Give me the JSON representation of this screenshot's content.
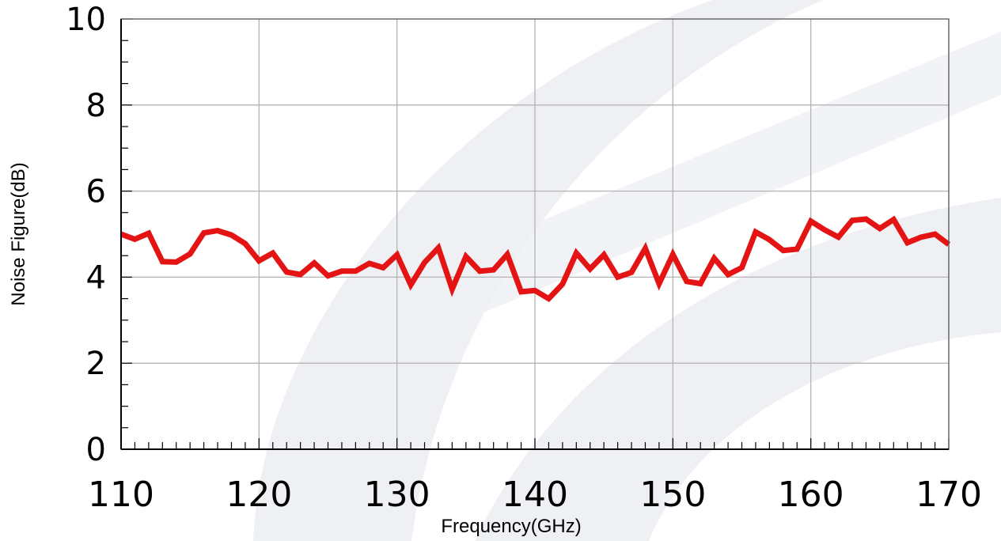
{
  "chart_data": {
    "type": "line",
    "title": "",
    "xlabel": "Frequency(GHz)",
    "ylabel": "Noise Figure(dB)",
    "xlim": [
      110,
      170
    ],
    "ylim": [
      0,
      10
    ],
    "x_major_ticks": [
      110,
      120,
      130,
      140,
      150,
      160,
      170
    ],
    "x_tick_labels": [
      "110",
      "120",
      "130",
      "140",
      "150",
      "160",
      "170"
    ],
    "y_major_ticks": [
      0,
      2,
      4,
      6,
      8,
      10
    ],
    "y_tick_labels": [
      "0",
      "2",
      "4",
      "6",
      "8",
      "10"
    ],
    "grid": true,
    "legend": "none",
    "series": [
      {
        "color": "#e41414",
        "x": [
          110,
          111,
          112,
          113,
          114,
          115,
          116,
          117,
          118,
          119,
          120,
          121,
          122,
          123,
          124,
          125,
          126,
          127,
          128,
          129,
          130,
          131,
          132,
          133,
          134,
          135,
          136,
          137,
          138,
          139,
          140,
          141,
          142,
          143,
          144,
          145,
          146,
          147,
          148,
          149,
          150,
          151,
          152,
          153,
          154,
          155,
          156,
          157,
          158,
          159,
          160,
          161,
          162,
          163,
          164,
          165,
          166,
          167,
          168,
          169,
          170
        ],
        "y": [
          5.0,
          4.88,
          5.02,
          4.36,
          4.35,
          4.54,
          5.03,
          5.08,
          4.98,
          4.78,
          4.38,
          4.56,
          4.12,
          4.06,
          4.33,
          4.03,
          4.14,
          4.14,
          4.32,
          4.22,
          4.52,
          3.82,
          4.34,
          4.68,
          3.72,
          4.48,
          4.14,
          4.17,
          4.53,
          3.66,
          3.69,
          3.5,
          3.84,
          4.56,
          4.19,
          4.52,
          4.0,
          4.11,
          4.67,
          3.85,
          4.53,
          3.9,
          3.85,
          4.44,
          4.06,
          4.22,
          5.05,
          4.87,
          4.62,
          4.65,
          5.3,
          5.1,
          4.93,
          5.32,
          5.35,
          5.13,
          5.34,
          4.8,
          4.93,
          5.0,
          4.76
        ]
      }
    ],
    "watermark_color": "#eef0f4"
  }
}
